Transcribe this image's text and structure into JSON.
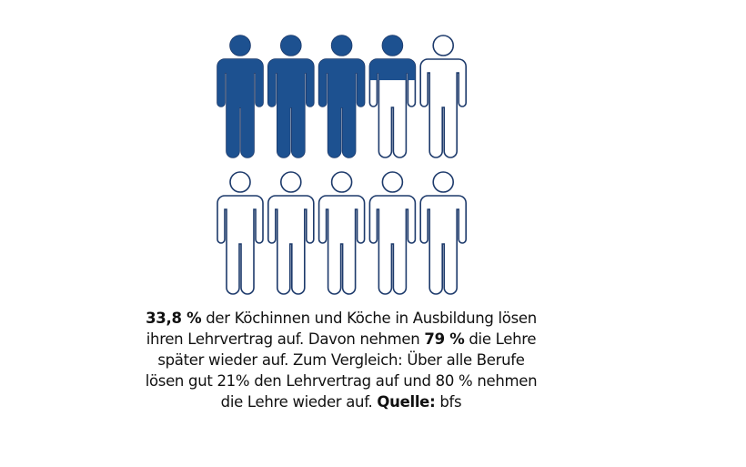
{
  "chart_data": {
    "type": "pictogram",
    "total_icons": 10,
    "rows": 2,
    "icons_per_row": 5,
    "icon": "person-icon",
    "value_percent": 33.8,
    "colors": {
      "fill": "#1d5190",
      "outline": "#1d3a6b"
    }
  },
  "caption": {
    "p1_bold": "33,8 %",
    "p1": " der Köchinnen und Köche in Ausbildung lösen ihren Lehrvertrag auf. Davon nehmen ",
    "p2_bold": "79 %",
    "p2": " die Lehre später wieder auf. Zum Vergleich: Über alle Berufe lösen gut 21% den Lehrvertrag auf und 80 % nehmen die Lehre wieder auf. ",
    "source_label": "Quelle:",
    "source": " bfs"
  }
}
